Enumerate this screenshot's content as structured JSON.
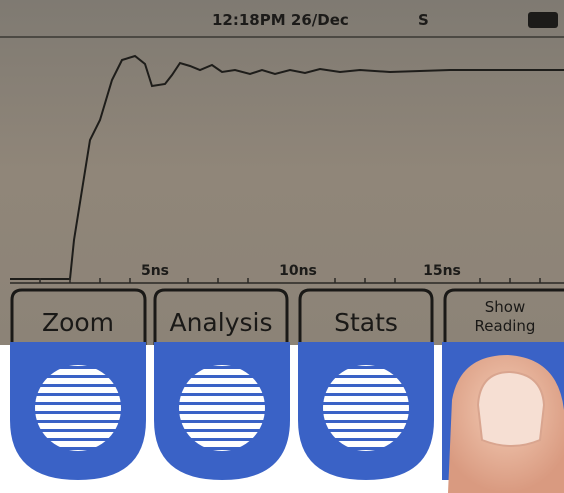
{
  "status_bar": {
    "time": "12:18PM 26/Dec",
    "mode": "S"
  },
  "axis": {
    "ticks": [
      "5ns",
      "10ns",
      "15ns"
    ]
  },
  "softkeys": [
    "Zoom",
    "Analysis",
    "Stats",
    "Show Reading"
  ]
}
